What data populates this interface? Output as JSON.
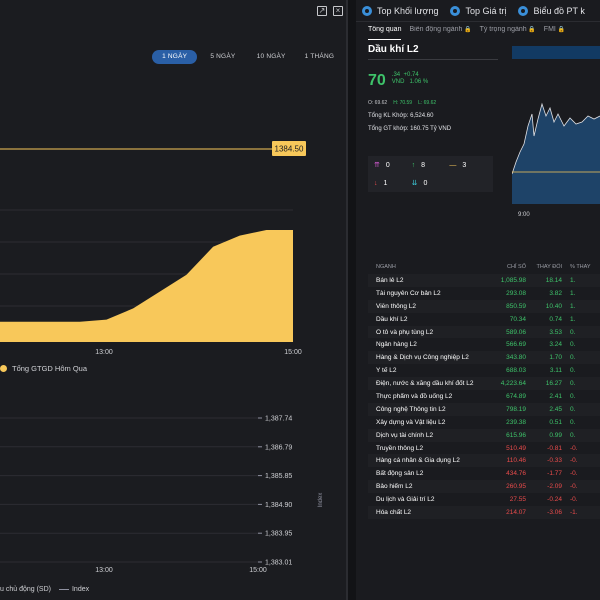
{
  "colors": {
    "bg": "#121316",
    "panel": "#1b1c20",
    "accent": "#2a5fa6",
    "area": "#f8c85a",
    "up": "#3ec36a",
    "down": "#ea4b4b"
  },
  "left": {
    "icons": [
      "expand-icon",
      "close-icon"
    ],
    "time_buttons": [
      "1 NGÀY",
      "5 NGÀY",
      "10 NGÀY",
      "1 THÁNG"
    ],
    "legend_top": "Tổng GTGD Hôm Qua",
    "legend_bottom": [
      "u chủ động (SD)",
      "Index"
    ]
  },
  "chart_data": [
    {
      "type": "area",
      "x_ticks": [
        "13:00",
        "15:00"
      ],
      "reference_value_label": "1384.50",
      "series": [
        {
          "values": [
            0.18,
            0.18,
            0.18,
            0.18,
            0.2,
            0.3,
            0.45,
            0.6,
            0.85,
            0.95,
            1.0,
            1.0
          ]
        }
      ]
    },
    {
      "type": "line",
      "x_ticks": [
        "13:00",
        "15:00"
      ],
      "y_ticks": [
        "1,387.74",
        "1,386.79",
        "1,385.85",
        "1,384.90",
        "1,383.95",
        "1,383.01"
      ],
      "y_axis_label": "Index"
    }
  ],
  "right": {
    "tabs": [
      "Top Khối lượng",
      "Top Giá trị",
      "Biểu đồ PT k"
    ],
    "subtabs": [
      "Tổng quan",
      "Biến động ngành",
      "Tỷ trọng ngành",
      "FMI"
    ],
    "stock": {
      "name": "Dầu khí L2",
      "price": "70",
      "change_small": ".34",
      "change": "+0.74",
      "currency": "VND",
      "change_pct": "1.06 %",
      "open": "O: 69.62",
      "high": "H: 70.59",
      "low": "L: 69.62",
      "total_volume": "Tổng KL Khớp: 6,524.60",
      "total_value": "Tổng GT khớp: 160.75 Tỷ VND"
    },
    "breadth": {
      "ceiling": "0",
      "up": "8",
      "flat": "3",
      "down": "1",
      "floor": "0"
    },
    "mini_chart": {
      "x_tick": "9:00"
    },
    "table_headers": [
      "NGÀNH",
      "CHỈ SỐ",
      "THAY ĐỔI",
      "% THAY"
    ],
    "rows": [
      {
        "name": "Bán lẻ L2",
        "index": "1,085.98",
        "change": "18.14",
        "pct": "1.",
        "up": true
      },
      {
        "name": "Tài nguyên Cơ bản L2",
        "index": "293.08",
        "change": "3.82",
        "pct": "1.",
        "up": true
      },
      {
        "name": "Viễn thông L2",
        "index": "850.59",
        "change": "10.40",
        "pct": "1.",
        "up": true
      },
      {
        "name": "Dầu khí L2",
        "index": "70.34",
        "change": "0.74",
        "pct": "1.",
        "up": true
      },
      {
        "name": "Ô tô và phụ tùng L2",
        "index": "589.06",
        "change": "3.53",
        "pct": "0.",
        "up": true
      },
      {
        "name": "Ngân hàng L2",
        "index": "566.69",
        "change": "3.24",
        "pct": "0.",
        "up": true
      },
      {
        "name": "Hàng & Dịch vụ Công nghiệp L2",
        "index": "343.80",
        "change": "1.70",
        "pct": "0.",
        "up": true
      },
      {
        "name": "Y tế L2",
        "index": "688.03",
        "change": "3.11",
        "pct": "0.",
        "up": true
      },
      {
        "name": "Điện, nước & xăng dầu khí đốt L2",
        "index": "4,223.64",
        "change": "16.27",
        "pct": "0.",
        "up": true
      },
      {
        "name": "Thực phẩm và đồ uống L2",
        "index": "674.89",
        "change": "2.41",
        "pct": "0.",
        "up": true
      },
      {
        "name": "Công nghệ Thông tin L2",
        "index": "798.19",
        "change": "2.45",
        "pct": "0.",
        "up": true
      },
      {
        "name": "Xây dựng và Vật liệu L2",
        "index": "239.38",
        "change": "0.51",
        "pct": "0.",
        "up": true
      },
      {
        "name": "Dịch vụ tài chính L2",
        "index": "615.96",
        "change": "0.99",
        "pct": "0.",
        "up": true
      },
      {
        "name": "Truyền thông L2",
        "index": "510.49",
        "change": "-0.81",
        "pct": "-0.",
        "up": false
      },
      {
        "name": "Hàng cá nhân & Gia dụng L2",
        "index": "110.46",
        "change": "-0.33",
        "pct": "-0.",
        "up": false
      },
      {
        "name": "Bất động sản L2",
        "index": "434.76",
        "change": "-1.77",
        "pct": "-0.",
        "up": false
      },
      {
        "name": "Bảo hiểm L2",
        "index": "260.95",
        "change": "-2.09",
        "pct": "-0.",
        "up": false
      },
      {
        "name": "Du lịch và Giải trí L2",
        "index": "27.55",
        "change": "-0.24",
        "pct": "-0.",
        "up": false
      },
      {
        "name": "Hóa chất L2",
        "index": "214.07",
        "change": "-3.06",
        "pct": "-1.",
        "up": false
      }
    ]
  }
}
